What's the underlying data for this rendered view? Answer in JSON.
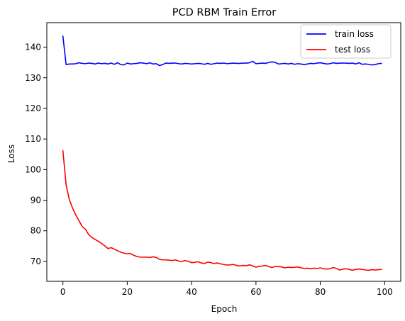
{
  "chart_data": {
    "type": "line",
    "title": "PCD RBM Train Error",
    "xlabel": "Epoch",
    "ylabel": "Loss",
    "xlim": [
      -5,
      105
    ],
    "ylim": [
      63.5,
      148
    ],
    "xticks": [
      0,
      20,
      40,
      60,
      80,
      100
    ],
    "yticks": [
      70,
      80,
      90,
      100,
      110,
      120,
      130,
      140
    ],
    "grid": false,
    "legend_position": "top-right",
    "series": [
      {
        "name": "train loss",
        "color": "#0000ff",
        "values": [
          143.6,
          134.3,
          134.5,
          134.5,
          134.6,
          134.9,
          134.7,
          134.6,
          134.8,
          134.7,
          134.5,
          134.8,
          134.6,
          134.7,
          134.5,
          134.8,
          134.4,
          134.9,
          134.3,
          134.2,
          134.8,
          134.5,
          134.6,
          134.7,
          134.9,
          134.8,
          134.6,
          134.9,
          134.5,
          134.6,
          134.0,
          134.3,
          134.8,
          134.7,
          134.8,
          134.8,
          134.6,
          134.5,
          134.7,
          134.6,
          134.5,
          134.6,
          134.7,
          134.6,
          134.4,
          134.7,
          134.4,
          134.6,
          134.8,
          134.7,
          134.8,
          134.6,
          134.7,
          134.8,
          134.7,
          134.7,
          134.8,
          134.8,
          134.9,
          135.4,
          134.6,
          134.7,
          134.8,
          134.7,
          135.0,
          135.2,
          135.0,
          134.5,
          134.6,
          134.7,
          134.5,
          134.7,
          134.4,
          134.6,
          134.5,
          134.3,
          134.5,
          134.7,
          134.6,
          134.8,
          134.9,
          134.7,
          134.5,
          134.6,
          134.9,
          134.7,
          134.8,
          134.8,
          134.8,
          134.7,
          134.8,
          134.5,
          134.9,
          134.4,
          134.5,
          134.4,
          134.2,
          134.3,
          134.6,
          134.7
        ]
      },
      {
        "name": "test loss",
        "color": "#ff0000",
        "values": [
          106.2,
          95.0,
          90.2,
          87.4,
          85.2,
          83.3,
          81.4,
          80.5,
          78.8,
          77.8,
          77.2,
          76.6,
          75.9,
          75.1,
          74.2,
          74.5,
          74.0,
          73.5,
          73.0,
          72.7,
          72.5,
          72.6,
          72.0,
          71.6,
          71.4,
          71.4,
          71.4,
          71.3,
          71.5,
          71.3,
          70.7,
          70.5,
          70.5,
          70.4,
          70.3,
          70.5,
          70.1,
          70.0,
          70.3,
          70.0,
          69.6,
          69.7,
          69.9,
          69.5,
          69.3,
          69.8,
          69.6,
          69.3,
          69.5,
          69.2,
          69.0,
          68.8,
          68.9,
          69.0,
          68.7,
          68.5,
          68.7,
          68.6,
          68.9,
          68.5,
          68.1,
          68.4,
          68.5,
          68.7,
          68.3,
          68.0,
          68.4,
          68.3,
          68.2,
          67.9,
          68.1,
          68.0,
          68.1,
          68.2,
          67.9,
          67.7,
          67.8,
          67.6,
          67.8,
          67.7,
          67.9,
          67.6,
          67.5,
          67.6,
          68.0,
          67.7,
          67.2,
          67.5,
          67.6,
          67.4,
          67.1,
          67.4,
          67.5,
          67.4,
          67.2,
          67.1,
          67.3,
          67.2,
          67.3,
          67.4
        ]
      }
    ]
  }
}
